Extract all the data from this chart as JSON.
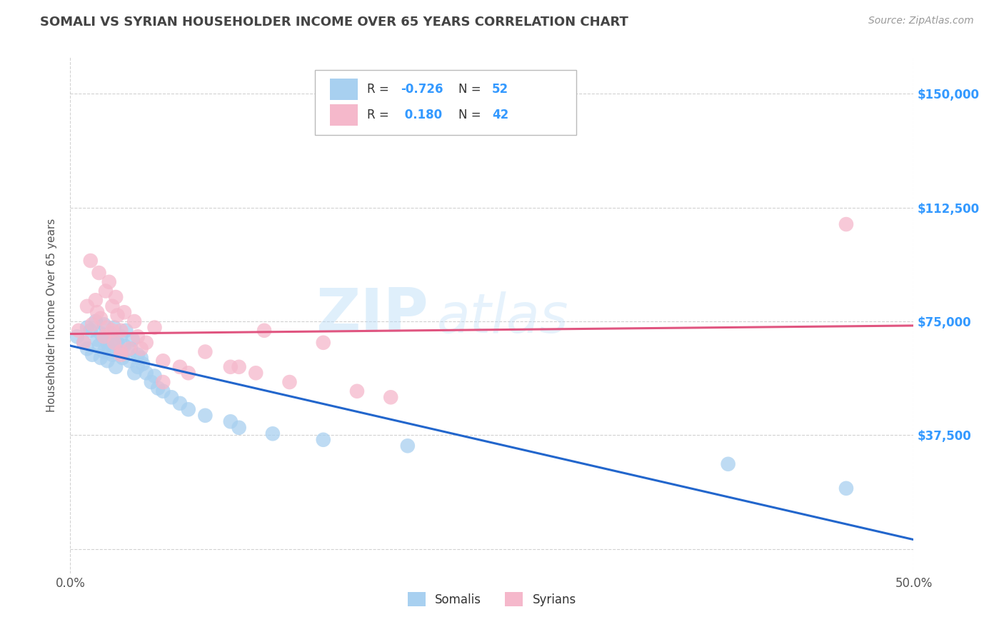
{
  "title": "SOMALI VS SYRIAN HOUSEHOLDER INCOME OVER 65 YEARS CORRELATION CHART",
  "source": "Source: ZipAtlas.com",
  "ylabel": "Householder Income Over 65 years",
  "yticks": [
    0,
    37500,
    75000,
    112500,
    150000
  ],
  "ytick_labels": [
    "",
    "$37,500",
    "$75,000",
    "$112,500",
    "$150,000"
  ],
  "xlim": [
    0.0,
    0.5
  ],
  "ylim": [
    -8000,
    162000
  ],
  "somali_R": -0.726,
  "somali_N": 52,
  "syrian_R": 0.18,
  "syrian_N": 42,
  "somali_color": "#a8d0f0",
  "syrian_color": "#f5b8cb",
  "somali_line_color": "#2266cc",
  "syrian_line_color": "#e05580",
  "legend_label_1": "Somalis",
  "legend_label_2": "Syrians",
  "watermark_zip": "ZIP",
  "watermark_atlas": "atlas",
  "background_color": "#ffffff",
  "grid_color": "#cccccc",
  "title_color": "#444444",
  "ytick_color": "#3399ff",
  "somali_x": [
    0.004,
    0.008,
    0.01,
    0.01,
    0.012,
    0.013,
    0.015,
    0.016,
    0.017,
    0.018,
    0.018,
    0.02,
    0.02,
    0.021,
    0.022,
    0.022,
    0.023,
    0.024,
    0.025,
    0.025,
    0.026,
    0.027,
    0.028,
    0.03,
    0.03,
    0.031,
    0.032,
    0.033,
    0.035,
    0.036,
    0.037,
    0.038,
    0.04,
    0.04,
    0.042,
    0.043,
    0.045,
    0.048,
    0.05,
    0.052,
    0.055,
    0.06,
    0.065,
    0.07,
    0.08,
    0.095,
    0.1,
    0.12,
    0.15,
    0.2,
    0.39,
    0.46
  ],
  "somali_y": [
    70000,
    68000,
    73000,
    66000,
    72000,
    64000,
    75000,
    69000,
    67000,
    71000,
    63000,
    74000,
    65000,
    70000,
    68000,
    62000,
    66000,
    71000,
    64000,
    69000,
    73000,
    60000,
    68000,
    65000,
    70000,
    63000,
    67000,
    72000,
    62000,
    66000,
    69000,
    58000,
    64000,
    60000,
    63000,
    61000,
    58000,
    55000,
    57000,
    53000,
    52000,
    50000,
    48000,
    46000,
    44000,
    42000,
    40000,
    38000,
    36000,
    34000,
    28000,
    20000
  ],
  "syrian_x": [
    0.005,
    0.008,
    0.01,
    0.012,
    0.013,
    0.015,
    0.016,
    0.017,
    0.018,
    0.02,
    0.021,
    0.022,
    0.023,
    0.025,
    0.026,
    0.027,
    0.028,
    0.03,
    0.03,
    0.032,
    0.035,
    0.038,
    0.04,
    0.045,
    0.05,
    0.055,
    0.065,
    0.08,
    0.095,
    0.11,
    0.13,
    0.15,
    0.17,
    0.19,
    0.115,
    0.055,
    0.042,
    0.07,
    0.03,
    0.025,
    0.1,
    0.46
  ],
  "syrian_y": [
    72000,
    68000,
    80000,
    95000,
    74000,
    82000,
    78000,
    91000,
    76000,
    70000,
    85000,
    73000,
    88000,
    80000,
    68000,
    83000,
    77000,
    72000,
    65000,
    78000,
    66000,
    75000,
    70000,
    68000,
    73000,
    62000,
    60000,
    65000,
    60000,
    58000,
    55000,
    68000,
    52000,
    50000,
    72000,
    55000,
    66000,
    58000,
    64000,
    72000,
    60000,
    107000
  ]
}
